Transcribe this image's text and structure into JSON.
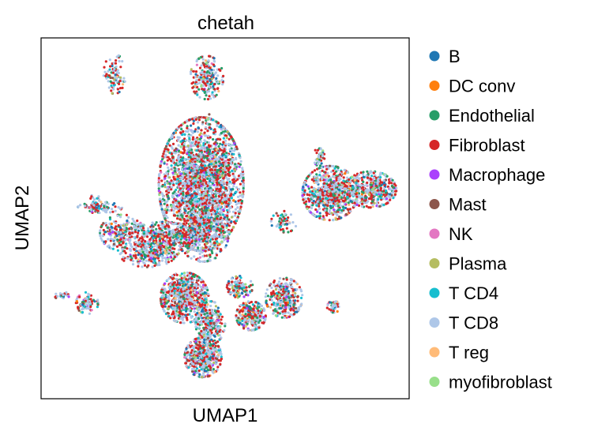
{
  "chart_data": {
    "type": "scatter",
    "title": "chetah",
    "xlabel": "UMAP1",
    "ylabel": "UMAP2",
    "ticks": "none",
    "grid": false,
    "legend_placement": "right-outside",
    "series": [
      {
        "name": "B",
        "color": "#1f77b4",
        "weight": 6
      },
      {
        "name": "DC conv",
        "color": "#ff7f0e",
        "weight": 1
      },
      {
        "name": "Endothelial",
        "color": "#279e68",
        "weight": 10
      },
      {
        "name": "Fibroblast",
        "color": "#d62728",
        "weight": 28
      },
      {
        "name": "Macrophage",
        "color": "#aa40fc",
        "weight": 2
      },
      {
        "name": "Mast",
        "color": "#8c564b",
        "weight": 3
      },
      {
        "name": "NK",
        "color": "#e377c2",
        "weight": 1
      },
      {
        "name": "Plasma",
        "color": "#b5bd61",
        "weight": 2
      },
      {
        "name": "T CD4",
        "color": "#17becf",
        "weight": 5
      },
      {
        "name": "T CD8",
        "color": "#aec7e8",
        "weight": 36
      },
      {
        "name": "T reg",
        "color": "#ffbb78",
        "weight": 2
      },
      {
        "name": "myofibroblast",
        "color": "#98df8a",
        "weight": 2
      }
    ],
    "clusters": [
      {
        "cx": 0.435,
        "cy": 0.595,
        "rx": 0.115,
        "ry": 0.185,
        "n": 2600
      },
      {
        "cx": 0.44,
        "cy": 0.46,
        "rx": 0.07,
        "ry": 0.08,
        "n": 400
      },
      {
        "cx": 0.33,
        "cy": 0.44,
        "rx": 0.09,
        "ry": 0.05,
        "n": 450
      },
      {
        "cx": 0.22,
        "cy": 0.46,
        "rx": 0.06,
        "ry": 0.05,
        "n": 250
      },
      {
        "cx": 0.145,
        "cy": 0.54,
        "rx": 0.03,
        "ry": 0.025,
        "n": 50
      },
      {
        "cx": 0.16,
        "cy": 0.53,
        "rx": 0.06,
        "ry": 0.015,
        "n": 60
      },
      {
        "cx": 0.2,
        "cy": 0.9,
        "rx": 0.03,
        "ry": 0.055,
        "n": 100
      },
      {
        "cx": 0.29,
        "cy": 0.4,
        "rx": 0.075,
        "ry": 0.035,
        "n": 180
      },
      {
        "cx": 0.39,
        "cy": 0.28,
        "rx": 0.065,
        "ry": 0.07,
        "n": 700
      },
      {
        "cx": 0.46,
        "cy": 0.21,
        "rx": 0.04,
        "ry": 0.06,
        "n": 300
      },
      {
        "cx": 0.57,
        "cy": 0.23,
        "rx": 0.04,
        "ry": 0.04,
        "n": 250
      },
      {
        "cx": 0.66,
        "cy": 0.28,
        "rx": 0.05,
        "ry": 0.055,
        "n": 300
      },
      {
        "cx": 0.54,
        "cy": 0.31,
        "rx": 0.035,
        "ry": 0.03,
        "n": 120
      },
      {
        "cx": 0.44,
        "cy": 0.115,
        "rx": 0.05,
        "ry": 0.055,
        "n": 450
      },
      {
        "cx": 0.125,
        "cy": 0.265,
        "rx": 0.03,
        "ry": 0.03,
        "n": 90
      },
      {
        "cx": 0.058,
        "cy": 0.285,
        "rx": 0.02,
        "ry": 0.012,
        "n": 25
      },
      {
        "cx": 0.785,
        "cy": 0.57,
        "rx": 0.075,
        "ry": 0.075,
        "n": 700
      },
      {
        "cx": 0.895,
        "cy": 0.58,
        "rx": 0.07,
        "ry": 0.05,
        "n": 450
      },
      {
        "cx": 0.66,
        "cy": 0.49,
        "rx": 0.035,
        "ry": 0.03,
        "n": 60
      },
      {
        "cx": 0.755,
        "cy": 0.67,
        "rx": 0.015,
        "ry": 0.025,
        "n": 40
      },
      {
        "cx": 0.795,
        "cy": 0.255,
        "rx": 0.018,
        "ry": 0.016,
        "n": 45
      },
      {
        "cx": 0.45,
        "cy": 0.89,
        "rx": 0.045,
        "ry": 0.06,
        "n": 220
      },
      {
        "cx": 0.455,
        "cy": 0.76,
        "rx": 0.005,
        "ry": 0.03,
        "n": 10
      }
    ]
  }
}
